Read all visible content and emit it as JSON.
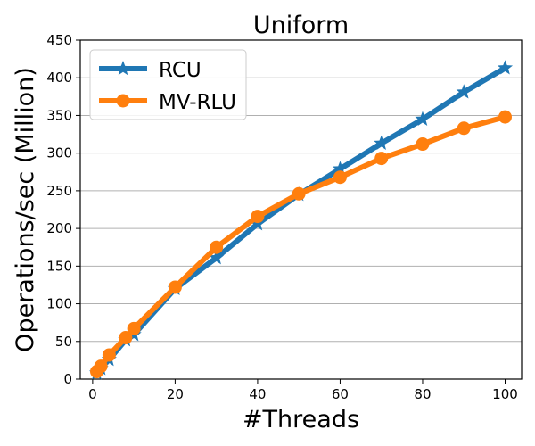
{
  "chart_data": {
    "type": "line",
    "title": "Uniform",
    "xlabel": "#Threads",
    "ylabel": "Operations/sec (Million)",
    "xlim": [
      -3,
      104
    ],
    "ylim": [
      0,
      450
    ],
    "x_ticks": [
      "0",
      "20",
      "40",
      "60",
      "80",
      "100"
    ],
    "y_ticks": [
      "0",
      "50",
      "100",
      "150",
      "200",
      "250",
      "300",
      "350",
      "400",
      "450"
    ],
    "grid": "y-axis horizontal lines",
    "legend": "top-left",
    "series": [
      {
        "name": "RCU",
        "color": "#1f77b4",
        "marker": "star",
        "x": [
          1,
          2,
          4,
          8,
          10,
          20,
          30,
          40,
          50,
          60,
          70,
          80,
          90,
          100
        ],
        "y": [
          8,
          14,
          26,
          52,
          59,
          120,
          161,
          206,
          245,
          279,
          313,
          345,
          381,
          413
        ]
      },
      {
        "name": "MV-RLU",
        "color": "#ff7f0e",
        "marker": "circle",
        "x": [
          1,
          2,
          4,
          8,
          10,
          20,
          30,
          40,
          50,
          60,
          70,
          80,
          90,
          100
        ],
        "y": [
          10,
          17,
          32,
          55,
          67,
          122,
          175,
          216,
          246,
          268,
          293,
          312,
          333,
          348
        ]
      }
    ]
  }
}
